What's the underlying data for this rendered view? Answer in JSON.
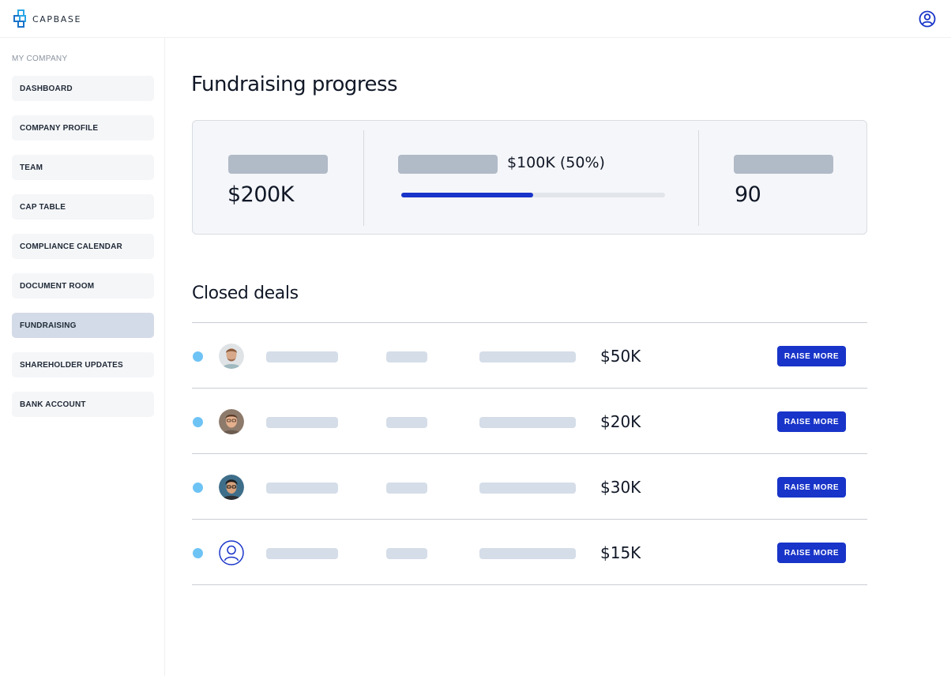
{
  "app": {
    "brand": "CAPBASE"
  },
  "sidebar": {
    "heading": "MY COMPANY",
    "items": [
      {
        "label": "DASHBOARD"
      },
      {
        "label": "COMPANY PROFILE"
      },
      {
        "label": "TEAM"
      },
      {
        "label": "CAP TABLE"
      },
      {
        "label": "COMPLIANCE CALENDAR"
      },
      {
        "label": "DOCUMENT ROOM"
      },
      {
        "label": "FUNDRAISING",
        "active": true
      },
      {
        "label": "SHAREHOLDER UPDATES"
      },
      {
        "label": "BANK ACCOUNT"
      }
    ]
  },
  "main": {
    "title": "Fundraising progress",
    "stats": {
      "first_value": "$200K",
      "progress_label": "$100K (50%)",
      "progress_fraction": 0.5,
      "third_value": "90"
    },
    "closed_deals": {
      "title": "Closed deals",
      "rows": [
        {
          "avatar": "photo-avatar-1",
          "amount": "$50K",
          "button": "RAISE MORE"
        },
        {
          "avatar": "photo-avatar-2",
          "amount": "$20K",
          "button": "RAISE MORE"
        },
        {
          "avatar": "photo-avatar-3",
          "amount": "$30K",
          "button": "RAISE MORE"
        },
        {
          "avatar": "user-placeholder-icon",
          "amount": "$15K",
          "button": "RAISE MORE"
        }
      ]
    }
  },
  "colors": {
    "accent": "#1834c9",
    "active_nav": "#d3dbe8",
    "status_dot": "#6ec3f5",
    "placeholder": "#b1bac7"
  }
}
